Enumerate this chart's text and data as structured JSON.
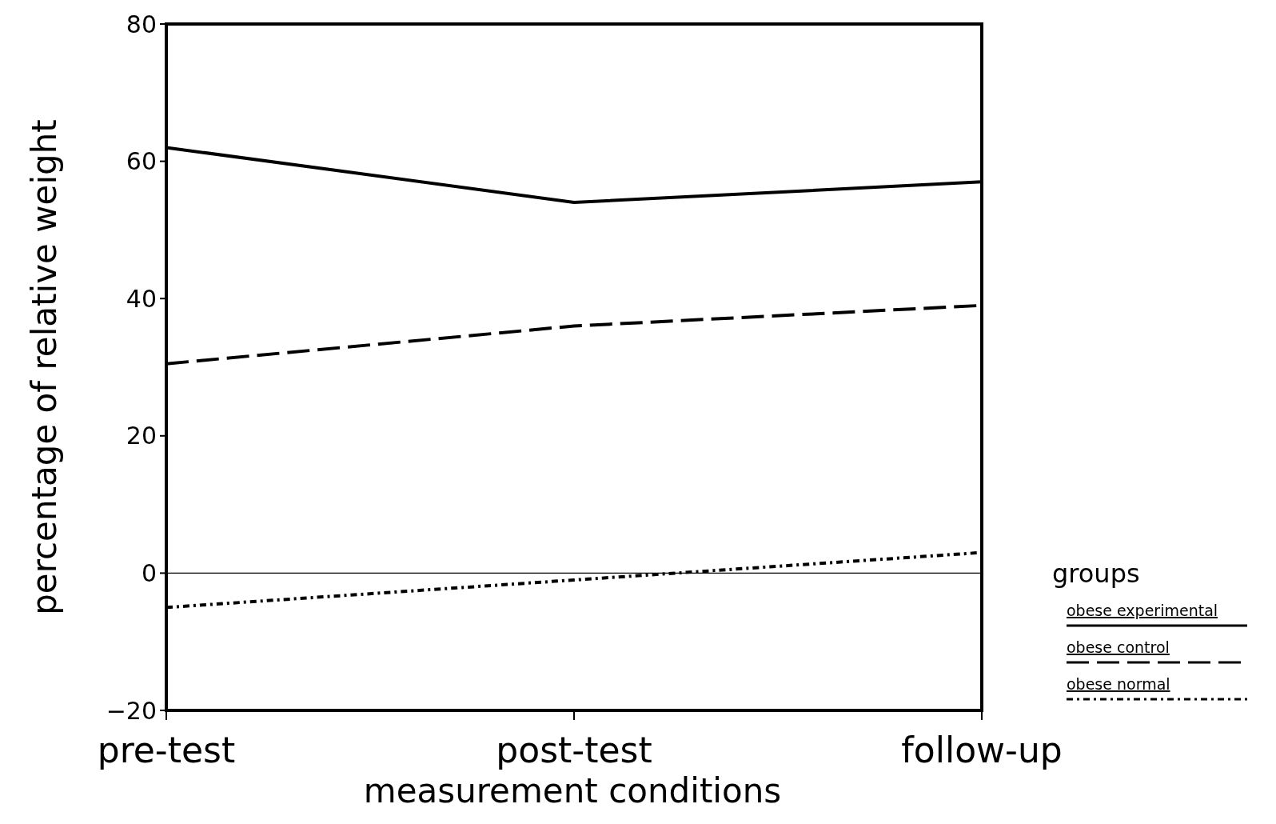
{
  "chart_data": {
    "type": "line",
    "xlabel": "measurement conditions",
    "ylabel": "percentage of relative weight",
    "legend_title": "groups",
    "legend": "bottom right",
    "grid": false,
    "categories": [
      "pre-test",
      "post-test",
      "follow-up"
    ],
    "ylim": [
      -20,
      80
    ],
    "yticks": [
      -20,
      0,
      20,
      40,
      60,
      80
    ],
    "ref_lines": [
      {
        "axis": "y",
        "value": 0,
        "color": "#000000",
        "line_style": "solid"
      }
    ],
    "series": [
      {
        "name": "obese experimental",
        "color": "#000000",
        "line_style": "solid",
        "values": [
          62,
          54,
          57
        ]
      },
      {
        "name": "obese control",
        "color": "#000000",
        "line_style": "dashed",
        "values": [
          30.5,
          36,
          39
        ]
      },
      {
        "name": "obese normal",
        "color": "#000000",
        "line_style": "dotted",
        "values": [
          -5,
          -1,
          3
        ]
      }
    ]
  }
}
